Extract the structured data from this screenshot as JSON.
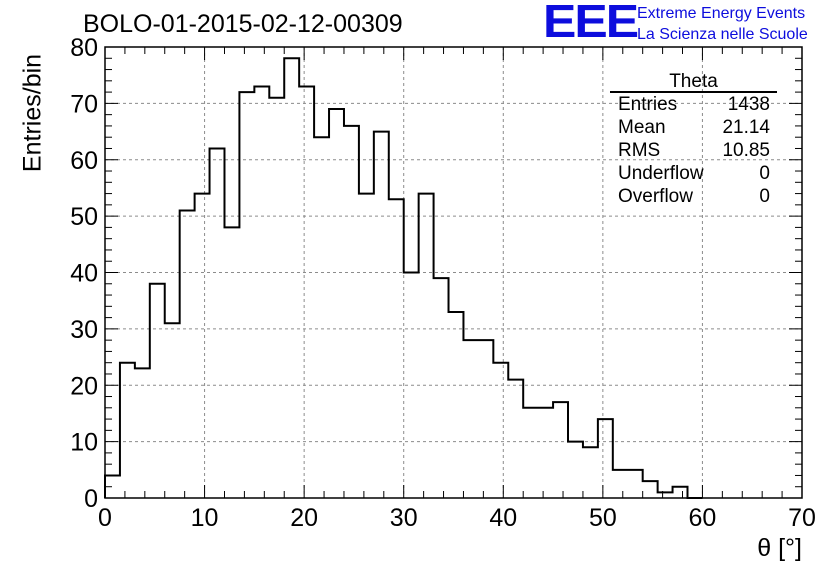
{
  "header": {
    "title": "BOLO-01-2015-02-12-00309",
    "logo_text": "EEE",
    "logo_line1": "Extreme Energy Events",
    "logo_line2": "La Scienza nelle Scuole"
  },
  "stats_box": {
    "title": "Theta",
    "rows": [
      {
        "label": "Entries",
        "value": "1438"
      },
      {
        "label": "Mean",
        "value": "21.14"
      },
      {
        "label": "RMS",
        "value": "10.85"
      },
      {
        "label": "Underflow",
        "value": "0"
      },
      {
        "label": "Overflow",
        "value": "0"
      }
    ]
  },
  "colors": {
    "logo": "#0d0ddd",
    "histogram_line": "#000000",
    "grid": "#8c8c8c"
  },
  "chart_data": {
    "type": "bar",
    "style": "step-histogram",
    "title": "BOLO-01-2015-02-12-00309",
    "xlabel": "θ [°]",
    "ylabel": "Entries/bin",
    "xlim": [
      0,
      70
    ],
    "ylim": [
      0,
      80
    ],
    "xticks": [
      0,
      10,
      20,
      30,
      40,
      50,
      60,
      70
    ],
    "yticks": [
      0,
      10,
      20,
      30,
      40,
      50,
      60,
      70,
      80
    ],
    "grid": true,
    "bin_width": 1.5,
    "bin_edges_start": 0,
    "counts": [
      4,
      24,
      23,
      38,
      31,
      51,
      54,
      62,
      48,
      72,
      73,
      71,
      78,
      73,
      64,
      69,
      66,
      54,
      65,
      53,
      40,
      54,
      39,
      33,
      28,
      28,
      24,
      21,
      16,
      16,
      17,
      10,
      9,
      14,
      5,
      5,
      3,
      1,
      2,
      0
    ]
  }
}
